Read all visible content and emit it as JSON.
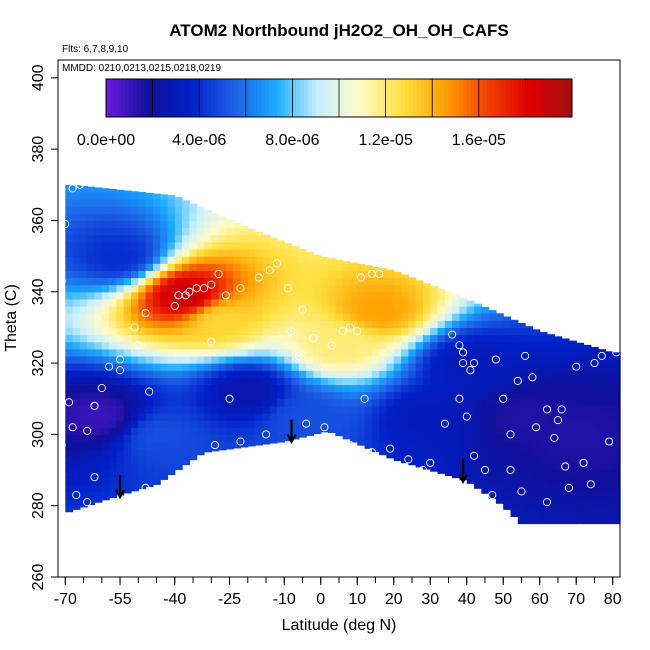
{
  "chart_data": {
    "type": "heatmap",
    "title": "ATOM2 Northbound jH2O2_OH_OH_CAFS",
    "flights_note": "Flts: 6,7,8,9,10",
    "dates_note": "MMDD: 0210,0213,0215,0218,0219",
    "xlabel": "Latitude (deg N)",
    "ylabel": "Theta (C)",
    "xlim": [
      -72,
      82
    ],
    "ylim": [
      260,
      405
    ],
    "x_ticks": [
      -70,
      -55,
      -40,
      -25,
      -10,
      0,
      10,
      20,
      30,
      40,
      50,
      60,
      70,
      80
    ],
    "x_tick_labels": [
      "-70",
      "-55",
      "-40",
      "-25",
      "-10",
      "0",
      "10",
      "20",
      "30",
      "40",
      "50",
      "60",
      "70",
      "80"
    ],
    "y_ticks": [
      260,
      280,
      300,
      320,
      340,
      360,
      380,
      400
    ],
    "y_tick_labels": [
      "260",
      "280",
      "300",
      "320",
      "340",
      "360",
      "380",
      "400"
    ],
    "colorbar": {
      "range": [
        0,
        2e-05
      ],
      "tick_values": [
        0,
        4e-06,
        8e-06,
        1.2e-05,
        1.6e-05
      ],
      "tick_labels": [
        "0.0e+00",
        "4.0e-06",
        "8.0e-06",
        "1.2e-05",
        "1.6e-05"
      ],
      "colors": [
        "#6a1ae0",
        "#10109a",
        "#0020c8",
        "#1e5ee6",
        "#19aaff",
        "#c8f0ff",
        "#fffbc8",
        "#ffe040",
        "#ffa000",
        "#f24000",
        "#e00000",
        "#a01010"
      ]
    },
    "domain_top_boundary": [
      [
        -68,
        370
      ],
      [
        -40,
        367
      ],
      [
        -20,
        358
      ],
      [
        0,
        350
      ],
      [
        20,
        346
      ],
      [
        40,
        338
      ],
      [
        60,
        329
      ],
      [
        80,
        323
      ]
    ],
    "domain_bottom_boundary": [
      [
        -70,
        278
      ],
      [
        -55,
        283
      ],
      [
        -45,
        286
      ],
      [
        -32,
        295
      ],
      [
        -10,
        298
      ],
      [
        2,
        301
      ],
      [
        20,
        293
      ],
      [
        40,
        287
      ],
      [
        50,
        280
      ],
      [
        55,
        275
      ],
      [
        80,
        275
      ]
    ],
    "field_features": [
      {
        "lat": -37,
        "theta": 339,
        "value": 1.9e-05
      },
      {
        "lat": -28,
        "theta": 332,
        "value": 1.3e-05
      },
      {
        "lat": 16,
        "theta": 335,
        "value": 1.45e-05
      },
      {
        "lat": 5,
        "theta": 325,
        "value": 1.2e-05
      },
      {
        "lat": -55,
        "theta": 350,
        "value": 4e-06
      },
      {
        "lat": -60,
        "theta": 305,
        "value": 1e-06
      },
      {
        "lat": -20,
        "theta": 312,
        "value": 2.5e-06
      },
      {
        "lat": 55,
        "theta": 305,
        "value": 1.5e-06
      },
      {
        "lat": 30,
        "theta": 305,
        "value": 3e-06
      },
      {
        "lat": -45,
        "theta": 300,
        "value": 5e-06
      },
      {
        "lat": -5,
        "theta": 305,
        "value": 5e-06
      },
      {
        "lat": 40,
        "theta": 320,
        "value": 3e-06
      },
      {
        "lat": 70,
        "theta": 300,
        "value": 1.5e-06
      }
    ],
    "observations": [
      [
        -68,
        369
      ],
      [
        -66,
        370
      ],
      [
        -70,
        359
      ],
      [
        -71,
        343
      ],
      [
        -72,
        337
      ],
      [
        -69,
        309
      ],
      [
        -68,
        302
      ],
      [
        -71,
        297
      ],
      [
        -67,
        283
      ],
      [
        -64,
        281
      ],
      [
        -62,
        288
      ],
      [
        -64,
        301
      ],
      [
        -62,
        308
      ],
      [
        -60,
        313
      ],
      [
        -58,
        319
      ],
      [
        -55,
        318
      ],
      [
        -55,
        321
      ],
      [
        -51,
        330
      ],
      [
        -50,
        325
      ],
      [
        -48,
        334
      ],
      [
        -47,
        312
      ],
      [
        -48,
        285
      ],
      [
        -40,
        336
      ],
      [
        -39,
        339
      ],
      [
        -37,
        339
      ],
      [
        -36,
        340
      ],
      [
        -34,
        341
      ],
      [
        -32,
        341
      ],
      [
        -30,
        342
      ],
      [
        -26,
        339
      ],
      [
        -22,
        341
      ],
      [
        -28,
        345
      ],
      [
        -30,
        326
      ],
      [
        -25,
        310
      ],
      [
        -29,
        297
      ],
      [
        -22,
        298
      ],
      [
        -15,
        300
      ],
      [
        -17,
        344
      ],
      [
        -14,
        346
      ],
      [
        -12,
        348
      ],
      [
        -9,
        341
      ],
      [
        -8,
        329
      ],
      [
        -6,
        322
      ],
      [
        -5,
        335
      ],
      [
        -2,
        327
      ],
      [
        -4,
        303
      ],
      [
        -1,
        298
      ],
      [
        1,
        302
      ],
      [
        3,
        325
      ],
      [
        6,
        329
      ],
      [
        8,
        330
      ],
      [
        10,
        329
      ],
      [
        11,
        344
      ],
      [
        14,
        345
      ],
      [
        16,
        345
      ],
      [
        12,
        310
      ],
      [
        8,
        297
      ],
      [
        14,
        295
      ],
      [
        19,
        296
      ],
      [
        24,
        293
      ],
      [
        28,
        290
      ],
      [
        30,
        292
      ],
      [
        36,
        328
      ],
      [
        38,
        325
      ],
      [
        39,
        323
      ],
      [
        39,
        320
      ],
      [
        41,
        318
      ],
      [
        42,
        320
      ],
      [
        38,
        310
      ],
      [
        34,
        303
      ],
      [
        40,
        305
      ],
      [
        42,
        294
      ],
      [
        45,
        290
      ],
      [
        47,
        283
      ],
      [
        48,
        321
      ],
      [
        50,
        310
      ],
      [
        52,
        300
      ],
      [
        54,
        315
      ],
      [
        56,
        322
      ],
      [
        58,
        316
      ],
      [
        59,
        302
      ],
      [
        62,
        307
      ],
      [
        64,
        299
      ],
      [
        65,
        304
      ],
      [
        66,
        307
      ],
      [
        67,
        291
      ],
      [
        68,
        285
      ],
      [
        70,
        319
      ],
      [
        72,
        292
      ],
      [
        74,
        286
      ],
      [
        75,
        320
      ],
      [
        77,
        322
      ],
      [
        79,
        298
      ],
      [
        81,
        323
      ],
      [
        62,
        281
      ],
      [
        55,
        284
      ],
      [
        52,
        290
      ],
      [
        45,
        280
      ]
    ],
    "arrows_latitudes": [
      -55,
      -8,
      39
    ]
  }
}
